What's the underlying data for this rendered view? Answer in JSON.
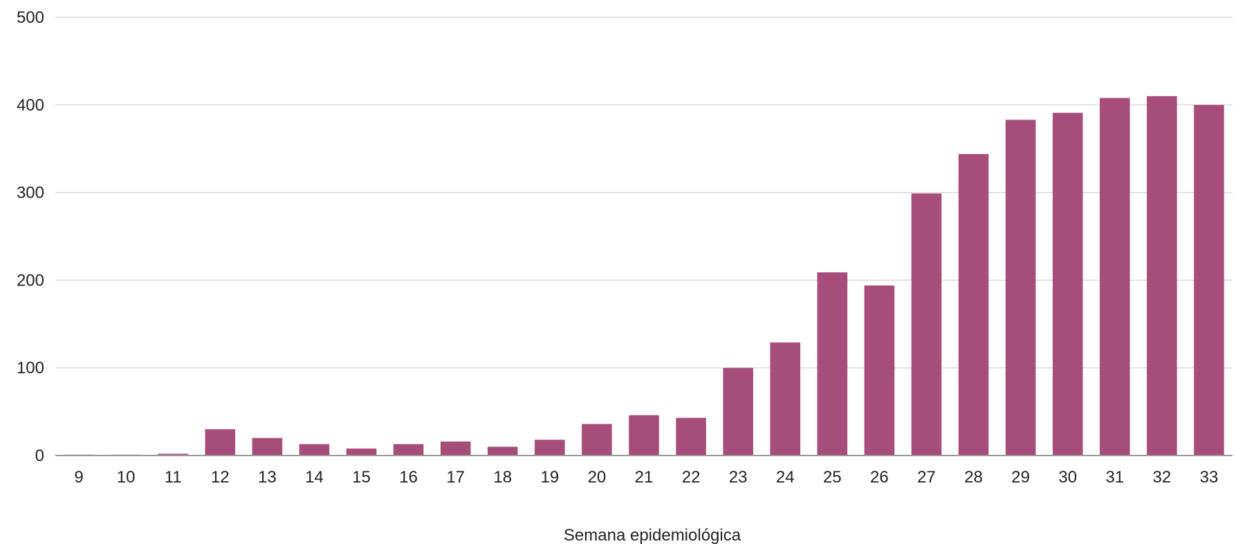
{
  "chart_data": {
    "type": "bar",
    "title": "",
    "xlabel": "Semana epidemiológica",
    "ylabel": "",
    "ylim": [
      0,
      500
    ],
    "yticks": [
      "0",
      "100",
      "200",
      "300",
      "400",
      "500"
    ],
    "grid": true,
    "legend": "none",
    "bar_color": "#a64d79",
    "grid_color": "#d9d9d9",
    "baseline_color": "#999999",
    "categories": [
      "9",
      "10",
      "11",
      "12",
      "13",
      "14",
      "15",
      "16",
      "17",
      "18",
      "19",
      "20",
      "21",
      "22",
      "23",
      "24",
      "25",
      "26",
      "27",
      "28",
      "29",
      "30",
      "31",
      "32",
      "33"
    ],
    "values": [
      1,
      1,
      2,
      30,
      20,
      13,
      8,
      13,
      16,
      10,
      18,
      36,
      46,
      43,
      100,
      129,
      209,
      194,
      299,
      344,
      383,
      391,
      408,
      410,
      400
    ]
  }
}
